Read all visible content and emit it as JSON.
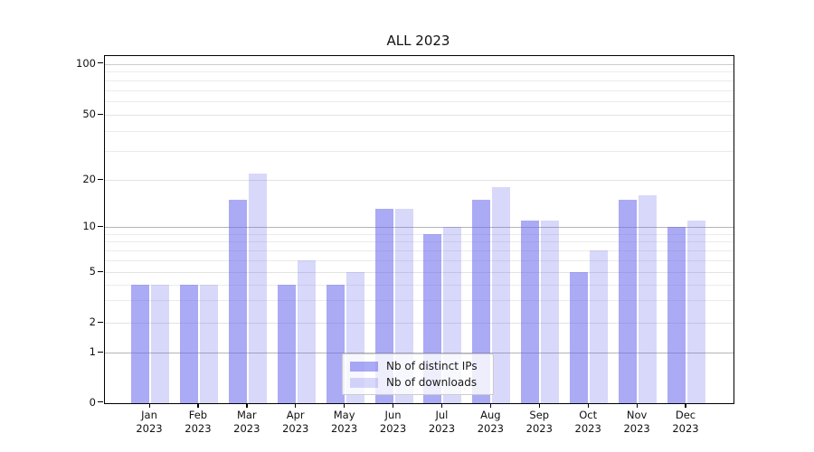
{
  "chart_data": {
    "type": "bar",
    "title": "ALL 2023",
    "categories": [
      "Jan",
      "Feb",
      "Mar",
      "Apr",
      "May",
      "Jun",
      "Jul",
      "Aug",
      "Sep",
      "Oct",
      "Nov",
      "Dec"
    ],
    "year": "2023",
    "series": [
      {
        "name": "Nb of distinct IPs",
        "color": "rgba(101,101,237,0.55)",
        "values": [
          4,
          4,
          15,
          4,
          4,
          13,
          9,
          15,
          11,
          5,
          15,
          10
        ]
      },
      {
        "name": "Nb of downloads",
        "color": "rgba(101,101,237,0.25)",
        "values": [
          4,
          4,
          22,
          6,
          5,
          13,
          10,
          18,
          11,
          7,
          16,
          11
        ]
      }
    ],
    "yticks": [
      0,
      1,
      2,
      5,
      10,
      20,
      50,
      100
    ],
    "ylim": [
      0,
      110
    ],
    "yscale": "log-like (0,1,2,5,10,20,50,100)",
    "xlabel": "",
    "ylabel": "",
    "grid": true,
    "legend_position": "lower center",
    "colors": {
      "bar_dark": "#a9a9f4",
      "bar_light": "#dadaf8",
      "grid_major": "#b5b5b5",
      "grid_minor": "#ebebeb",
      "axis": "#000000"
    }
  }
}
